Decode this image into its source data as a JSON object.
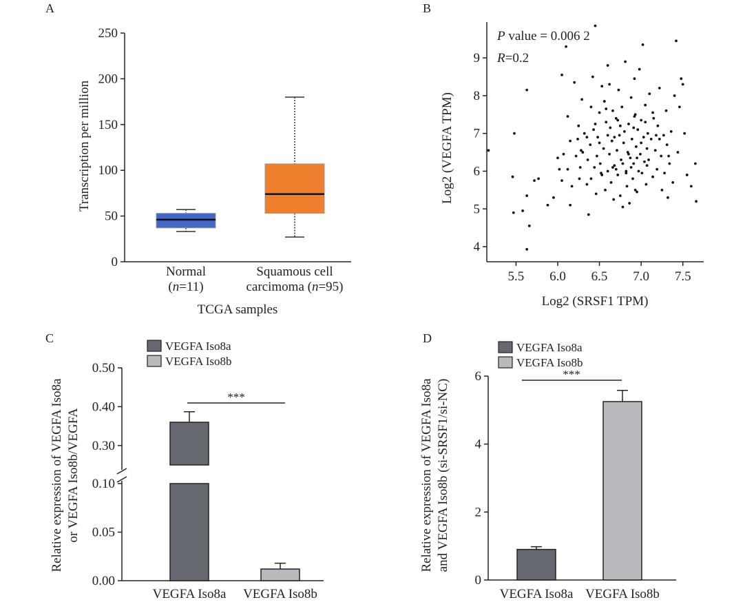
{
  "figure": {
    "panel_labels": [
      "A",
      "B",
      "C",
      "D"
    ]
  },
  "chart_data": [
    {
      "id": "A",
      "type": "box",
      "title": "",
      "xlabel": "TCGA samples",
      "ylabel": "Transcription per million",
      "ylim": [
        0,
        250
      ],
      "yticks": [
        0,
        50,
        100,
        150,
        200,
        250
      ],
      "categories": [
        {
          "line1": "Normal",
          "line2_prefix": "(",
          "n_symbol": "n",
          "line2_suffix": "=11)"
        },
        {
          "line1": "Squamous cell",
          "line2_prefix": "carcimoma (",
          "n_symbol": "n",
          "line2_suffix": "=95)"
        }
      ],
      "boxes": [
        {
          "min": 33,
          "q1": 37,
          "median": 46,
          "q3": 53,
          "max": 57,
          "color": "#4466c4"
        },
        {
          "min": 27,
          "q1": 53,
          "median": 74,
          "q3": 107,
          "max": 180,
          "color": "#ee7f2d"
        }
      ]
    },
    {
      "id": "B",
      "type": "scatter",
      "xlabel": "Log2 (SRSF1 TPM)",
      "ylabel": "Log2 (VEGFA TPM)",
      "xlim": [
        5.15,
        7.75
      ],
      "ylim": [
        3.6,
        9.95
      ],
      "xticks": [
        5.5,
        6.0,
        6.5,
        7.0,
        7.5
      ],
      "xtick_labels": [
        "5.5",
        "6.0",
        "6.5",
        "7.0",
        "7.5"
      ],
      "yticks": [
        4,
        5,
        6,
        7,
        8,
        9
      ],
      "annotation": {
        "p_symbol": "P",
        "p_text": " value = 0.006 2",
        "r_symbol": "R",
        "r_text": "=0.2"
      },
      "points": [
        [
          5.17,
          6.55
        ],
        [
          5.46,
          5.85
        ],
        [
          5.47,
          4.9
        ],
        [
          5.48,
          7.0
        ],
        [
          5.58,
          4.95
        ],
        [
          5.63,
          3.93
        ],
        [
          5.63,
          5.35
        ],
        [
          5.66,
          4.55
        ],
        [
          5.63,
          8.15
        ],
        [
          5.72,
          5.75
        ],
        [
          5.77,
          5.8
        ],
        [
          5.88,
          5.1
        ],
        [
          5.95,
          5.3
        ],
        [
          6.0,
          6.35
        ],
        [
          6.02,
          6.05
        ],
        [
          6.05,
          8.55
        ],
        [
          6.07,
          6.45
        ],
        [
          6.05,
          5.75
        ],
        [
          6.1,
          9.3
        ],
        [
          6.12,
          7.45
        ],
        [
          6.12,
          6.05
        ],
        [
          6.15,
          6.8
        ],
        [
          6.17,
          5.6
        ],
        [
          6.15,
          5.1
        ],
        [
          6.2,
          8.35
        ],
        [
          6.22,
          6.4
        ],
        [
          6.24,
          6.85
        ],
        [
          6.25,
          7.2
        ],
        [
          6.26,
          5.8
        ],
        [
          6.27,
          6.1
        ],
        [
          6.29,
          7.9
        ],
        [
          6.3,
          6.5
        ],
        [
          6.32,
          7.0
        ],
        [
          6.35,
          5.65
        ],
        [
          6.36,
          6.3
        ],
        [
          6.37,
          4.85
        ],
        [
          6.39,
          6.7
        ],
        [
          6.4,
          5.8
        ],
        [
          6.42,
          8.5
        ],
        [
          6.43,
          7.1
        ],
        [
          6.44,
          6.1
        ],
        [
          6.45,
          9.85
        ],
        [
          6.46,
          5.4
        ],
        [
          6.48,
          6.9
        ],
        [
          6.5,
          7.55
        ],
        [
          6.51,
          6.2
        ],
        [
          6.52,
          5.95
        ],
        [
          6.53,
          8.25
        ],
        [
          6.55,
          6.6
        ],
        [
          6.56,
          7.85
        ],
        [
          6.57,
          5.5
        ],
        [
          6.58,
          7.3
        ],
        [
          6.6,
          6.0
        ],
        [
          6.6,
          8.8
        ],
        [
          6.62,
          6.45
        ],
        [
          6.63,
          7.15
        ],
        [
          6.64,
          5.7
        ],
        [
          6.65,
          6.8
        ],
        [
          6.66,
          7.6
        ],
        [
          6.67,
          5.25
        ],
        [
          6.68,
          6.15
        ],
        [
          6.7,
          7.4
        ],
        [
          6.71,
          6.55
        ],
        [
          6.72,
          5.9
        ],
        [
          6.73,
          8.15
        ],
        [
          6.74,
          6.95
        ],
        [
          6.75,
          5.35
        ],
        [
          6.76,
          6.3
        ],
        [
          6.77,
          7.7
        ],
        [
          6.78,
          5.05
        ],
        [
          6.79,
          6.75
        ],
        [
          6.8,
          7.05
        ],
        [
          6.81,
          8.9
        ],
        [
          6.82,
          6.0
        ],
        [
          6.83,
          5.6
        ],
        [
          6.84,
          6.5
        ],
        [
          6.85,
          7.25
        ],
        [
          6.86,
          5.15
        ],
        [
          6.87,
          6.35
        ],
        [
          6.88,
          7.95
        ],
        [
          6.89,
          6.85
        ],
        [
          6.9,
          5.8
        ],
        [
          6.91,
          6.2
        ],
        [
          6.92,
          8.45
        ],
        [
          6.93,
          7.5
        ],
        [
          6.94,
          6.65
        ],
        [
          6.95,
          5.45
        ],
        [
          6.96,
          7.1
        ],
        [
          6.97,
          6.0
        ],
        [
          6.98,
          8.7
        ],
        [
          6.99,
          6.45
        ],
        [
          7.0,
          7.35
        ],
        [
          7.01,
          5.95
        ],
        [
          7.02,
          9.35
        ],
        [
          7.03,
          6.9
        ],
        [
          7.04,
          6.25
        ],
        [
          7.05,
          7.75
        ],
        [
          7.06,
          5.65
        ],
        [
          7.07,
          6.6
        ],
        [
          7.08,
          7.0
        ],
        [
          7.09,
          6.3
        ],
        [
          7.1,
          8.05
        ],
        [
          7.12,
          6.85
        ],
        [
          7.14,
          5.85
        ],
        [
          7.15,
          7.4
        ],
        [
          7.17,
          6.55
        ],
        [
          7.19,
          6.05
        ],
        [
          7.2,
          7.2
        ],
        [
          7.22,
          8.2
        ],
        [
          7.24,
          6.4
        ],
        [
          7.25,
          5.5
        ],
        [
          7.27,
          6.95
        ],
        [
          7.28,
          5.95
        ],
        [
          7.3,
          7.6
        ],
        [
          7.31,
          6.7
        ],
        [
          7.32,
          5.3
        ],
        [
          7.34,
          6.2
        ],
        [
          7.36,
          7.05
        ],
        [
          7.38,
          5.7
        ],
        [
          7.4,
          8.0
        ],
        [
          7.42,
          9.45
        ],
        [
          7.44,
          6.5
        ],
        [
          7.46,
          7.7
        ],
        [
          7.48,
          8.45
        ],
        [
          7.5,
          8.3
        ],
        [
          7.52,
          7.0
        ],
        [
          7.55,
          5.9
        ],
        [
          7.6,
          5.6
        ],
        [
          7.65,
          6.2
        ],
        [
          7.66,
          5.2
        ],
        [
          6.58,
          7.65
        ],
        [
          6.62,
          8.3
        ],
        [
          6.7,
          6.05
        ],
        [
          6.75,
          7.2
        ],
        [
          6.82,
          5.95
        ],
        [
          6.88,
          6.1
        ],
        [
          6.91,
          7.15
        ],
        [
          6.95,
          6.35
        ],
        [
          7.0,
          6.75
        ],
        [
          7.05,
          7.3
        ],
        [
          6.35,
          6.9
        ],
        [
          6.4,
          7.7
        ],
        [
          6.47,
          6.4
        ],
        [
          6.53,
          5.9
        ],
        [
          6.6,
          6.95
        ],
        [
          6.66,
          6.1
        ],
        [
          6.72,
          7.35
        ],
        [
          6.78,
          6.2
        ],
        [
          6.85,
          6.45
        ],
        [
          6.92,
          7.45
        ],
        [
          7.14,
          7.55
        ],
        [
          7.22,
          6.85
        ],
        [
          7.33,
          6.4
        ],
        [
          6.28,
          6.55
        ],
        [
          6.45,
          7.25
        ],
        [
          6.5,
          6.75
        ],
        [
          6.68,
          6.9
        ],
        [
          6.93,
          5.5
        ],
        [
          7.07,
          6.15
        ],
        [
          7.18,
          6.95
        ]
      ]
    },
    {
      "id": "C",
      "type": "bar",
      "legend": [
        "VEGFA Iso8a",
        "VEGFA Iso8b"
      ],
      "categories": [
        "VEGFA Iso8a",
        "VEGFA Iso8b"
      ],
      "values": [
        0.36,
        0.012
      ],
      "errors": [
        0.027,
        0.006
      ],
      "colors": [
        "#666870",
        "#b9babd"
      ],
      "ylabel_line1": "Relative expression of VEGFA Iso8a",
      "ylabel_line2": "or VEGFA Iso8b/VEGFA",
      "broken_axis": {
        "lower_range": [
          0,
          0.1
        ],
        "upper_range": [
          0.25,
          0.5
        ]
      },
      "yticks_lower": [
        0.0,
        0.05,
        0.1
      ],
      "ytick_labels_lower": [
        "0.00",
        "0.05",
        "0.10"
      ],
      "yticks_upper": [
        0.3,
        0.4,
        0.5
      ],
      "ytick_labels_upper": [
        "0.30",
        "0.40",
        "0.50"
      ],
      "significance": "***"
    },
    {
      "id": "D",
      "type": "bar",
      "legend": [
        "VEGFA Iso8a",
        "VEGFA Iso8b"
      ],
      "categories": [
        "VEGFA Iso8a",
        "VEGFA Iso8b"
      ],
      "values": [
        0.9,
        5.25
      ],
      "errors": [
        0.08,
        0.33
      ],
      "colors": [
        "#666870",
        "#b9babd"
      ],
      "ylabel_line1": "Relative expression of VEGFA Iso8a",
      "ylabel_line2": "and VEGFA Iso8b (si-SRSF1/si-NC)",
      "ylim": [
        0,
        6
      ],
      "yticks": [
        0,
        2,
        4,
        6
      ],
      "significance": "***"
    }
  ]
}
